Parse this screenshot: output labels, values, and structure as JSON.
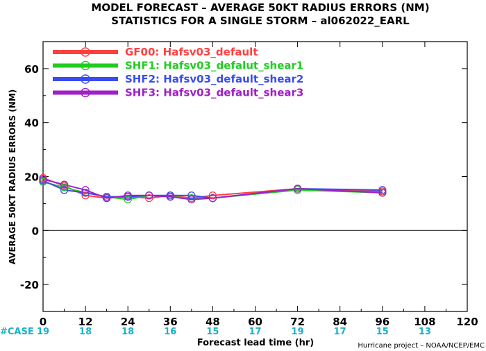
{
  "chart_data": {
    "type": "line",
    "title_line1": "MODEL FORECAST – AVERAGE 50KT RADIUS ERRORS (NM)",
    "title_line2": "STATISTICS FOR A SINGLE STORM – al062022_EARL",
    "ylabel": "AVERAGE 50KT RADIUS ERRORS (NM)",
    "xlabel": "Forecast lead time (hr)",
    "credit": "Hurricane project – NOAA/NCEP/EMC",
    "case_label": "#CASE",
    "xlim": [
      0,
      120
    ],
    "ylim": [
      -30,
      70
    ],
    "xticks": [
      "0",
      "12",
      "24",
      "36",
      "48",
      "60",
      "72",
      "84",
      "96",
      "108",
      "120"
    ],
    "yticks": [
      "-20",
      "0",
      "20",
      "40",
      "60"
    ],
    "cases": [
      {
        "x": 0,
        "label": "19"
      },
      {
        "x": 12,
        "label": "18"
      },
      {
        "x": 24,
        "label": "18"
      },
      {
        "x": 36,
        "label": "16"
      },
      {
        "x": 48,
        "label": "15"
      },
      {
        "x": 60,
        "label": "17"
      },
      {
        "x": 72,
        "label": "19"
      },
      {
        "x": 84,
        "label": "17"
      },
      {
        "x": 96,
        "label": "15"
      },
      {
        "x": 108,
        "label": "13"
      }
    ],
    "x": [
      0,
      6,
      12,
      18,
      24,
      30,
      36,
      42,
      48,
      72,
      96
    ],
    "series": [
      {
        "name": "GF00: Hafsv03_default",
        "color": "#ff4040",
        "values": [
          19.5,
          16.5,
          13,
          12,
          12.5,
          12,
          13,
          12,
          13,
          15.5,
          14.5
        ]
      },
      {
        "name": "SHF1: Hafsv03_defalut_shear1",
        "color": "#22cc22",
        "values": [
          18,
          16,
          14,
          12.5,
          11.5,
          13,
          12.5,
          12,
          12,
          15,
          14
        ]
      },
      {
        "name": "SHF2: Hafsv03_default_shear2",
        "color": "#3a4cf0",
        "values": [
          18.5,
          15,
          14,
          12.5,
          12.5,
          13,
          13,
          13,
          12,
          15.5,
          15
        ]
      },
      {
        "name": "SHF3: Hafsv03_default_shear3",
        "color": "#a020c8",
        "values": [
          19,
          17,
          15,
          12,
          13,
          13,
          12.5,
          11.5,
          12,
          15.5,
          14
        ]
      }
    ]
  }
}
